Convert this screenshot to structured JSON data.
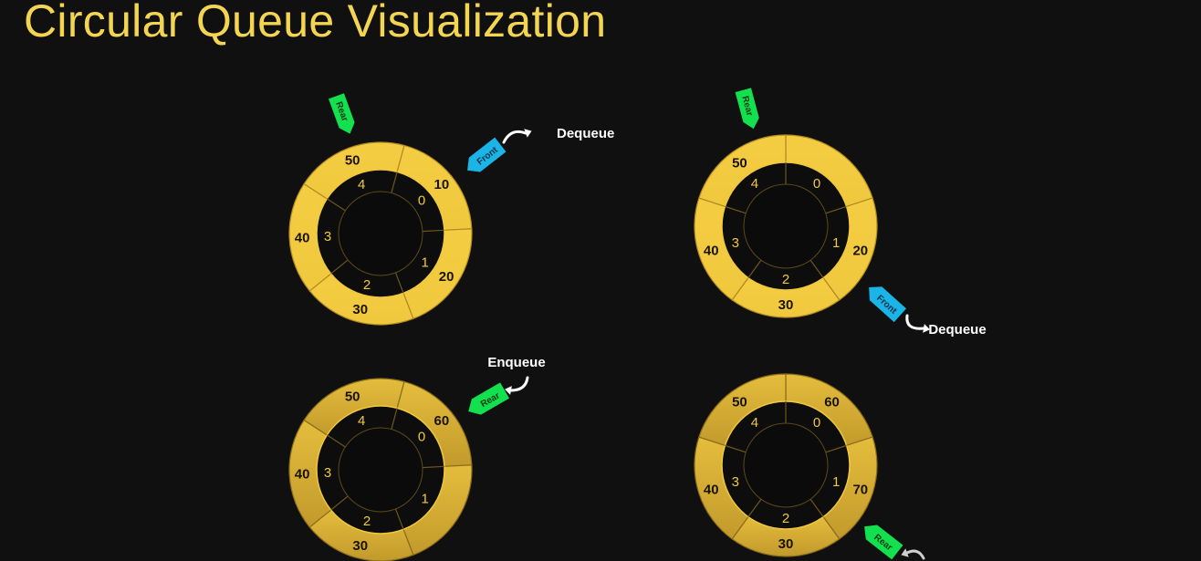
{
  "title": "Circular Queue Visualization",
  "colors": {
    "background": "#101010",
    "title": "#f3d552",
    "outer_ring": "#f5cd42",
    "outer_ring_dark": "#caa02c",
    "inner_ring": "#0d0d0d",
    "index_text": "#f0c93c",
    "value_text": "#1a1303",
    "rear_marker": "#12e04e",
    "front_marker": "#1ab4e6",
    "action_text": "#ffffff"
  },
  "queues": [
    {
      "values": [
        "10",
        "20",
        "30",
        "40",
        "50"
      ],
      "indices": [
        "0",
        "1",
        "2",
        "3",
        "4"
      ],
      "markers": [
        {
          "label": "Rear",
          "color": "rear",
          "points_to_index": "4"
        },
        {
          "label": "Front",
          "color": "front",
          "points_to_index": "0"
        }
      ],
      "action": "Dequeue"
    },
    {
      "values": [
        "",
        "20",
        "30",
        "40",
        "50"
      ],
      "indices": [
        "0",
        "1",
        "2",
        "3",
        "4"
      ],
      "markers": [
        {
          "label": "Rear",
          "color": "rear",
          "points_to_index": "4"
        },
        {
          "label": "Front",
          "color": "front",
          "points_to_index": "1"
        }
      ],
      "action": "Dequeue"
    },
    {
      "values": [
        "60",
        "",
        "30",
        "40",
        "50"
      ],
      "indices": [
        "0",
        "1",
        "2",
        "3",
        "4"
      ],
      "markers": [
        {
          "label": "Rear",
          "color": "rear",
          "points_to_index": "0"
        }
      ],
      "action": "Enqueue"
    },
    {
      "values": [
        "60",
        "70",
        "30",
        "40",
        "50"
      ],
      "indices": [
        "0",
        "1",
        "2",
        "3",
        "4"
      ],
      "markers": [
        {
          "label": "Rear",
          "color": "rear",
          "points_to_index": "1"
        }
      ],
      "action": ""
    }
  ]
}
